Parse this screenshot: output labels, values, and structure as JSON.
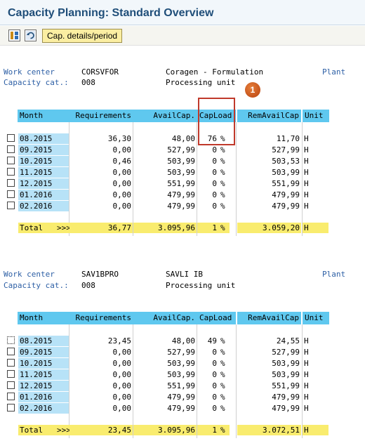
{
  "window": {
    "title": "Capacity Planning: Standard Overview"
  },
  "toolbar": {
    "icons": [
      "layout-icon",
      "refresh-icon"
    ],
    "button_label": "Cap. details/period"
  },
  "labels": {
    "work_center": "Work center",
    "capacity_cat": "Capacity cat.:",
    "plant": "Plant"
  },
  "columns": {
    "month": "Month",
    "requirements": "Requirements",
    "avail": "AvailCap.",
    "capload": "CapLoad",
    "remavail": "RemAvailCap",
    "unit": "Unit"
  },
  "callout": {
    "number": "1"
  },
  "blocks": [
    {
      "work_center": "CORSVFOR",
      "work_center_desc": "Coragen - Formulation",
      "capacity_cat": "008",
      "capacity_desc": "Processing unit",
      "rows": [
        {
          "month": "08.2015",
          "req": "36,30",
          "avail": "48,00",
          "cap": "76",
          "pct": "%",
          "rem": "11,70",
          "unit": "H"
        },
        {
          "month": "09.2015",
          "req": "0,00",
          "avail": "527,99",
          "cap": "0",
          "pct": "%",
          "rem": "527,99",
          "unit": "H"
        },
        {
          "month": "10.2015",
          "req": "0,46",
          "avail": "503,99",
          "cap": "0",
          "pct": "%",
          "rem": "503,53",
          "unit": "H"
        },
        {
          "month": "11.2015",
          "req": "0,00",
          "avail": "503,99",
          "cap": "0",
          "pct": "%",
          "rem": "503,99",
          "unit": "H"
        },
        {
          "month": "12.2015",
          "req": "0,00",
          "avail": "551,99",
          "cap": "0",
          "pct": "%",
          "rem": "551,99",
          "unit": "H"
        },
        {
          "month": "01.2016",
          "req": "0,00",
          "avail": "479,99",
          "cap": "0",
          "pct": "%",
          "rem": "479,99",
          "unit": "H"
        },
        {
          "month": "02.2016",
          "req": "0,00",
          "avail": "479,99",
          "cap": "0",
          "pct": "%",
          "rem": "479,99",
          "unit": "H"
        }
      ],
      "total": {
        "label": "Total",
        "arrows": ">>>",
        "req": "36,77",
        "avail": "3.095,96",
        "cap": "1",
        "pct": "%",
        "rem": "3.059,20",
        "unit": "H"
      }
    },
    {
      "work_center": "SAV1BPRO",
      "work_center_desc": "SAVLI IB",
      "capacity_cat": "008",
      "capacity_desc": "Processing unit",
      "rows": [
        {
          "month": "08.2015",
          "req": "23,45",
          "avail": "48,00",
          "cap": "49",
          "pct": "%",
          "rem": "24,55",
          "unit": "H"
        },
        {
          "month": "09.2015",
          "req": "0,00",
          "avail": "527,99",
          "cap": "0",
          "pct": "%",
          "rem": "527,99",
          "unit": "H"
        },
        {
          "month": "10.2015",
          "req": "0,00",
          "avail": "503,99",
          "cap": "0",
          "pct": "%",
          "rem": "503,99",
          "unit": "H"
        },
        {
          "month": "11.2015",
          "req": "0,00",
          "avail": "503,99",
          "cap": "0",
          "pct": "%",
          "rem": "503,99",
          "unit": "H"
        },
        {
          "month": "12.2015",
          "req": "0,00",
          "avail": "551,99",
          "cap": "0",
          "pct": "%",
          "rem": "551,99",
          "unit": "H"
        },
        {
          "month": "01.2016",
          "req": "0,00",
          "avail": "479,99",
          "cap": "0",
          "pct": "%",
          "rem": "479,99",
          "unit": "H"
        },
        {
          "month": "02.2016",
          "req": "0,00",
          "avail": "479,99",
          "cap": "0",
          "pct": "%",
          "rem": "479,99",
          "unit": "H"
        }
      ],
      "total": {
        "label": "Total",
        "arrows": ">>>",
        "req": "23,45",
        "avail": "3.095,96",
        "cap": "1",
        "pct": "%",
        "rem": "3.072,51",
        "unit": "H"
      }
    }
  ]
}
